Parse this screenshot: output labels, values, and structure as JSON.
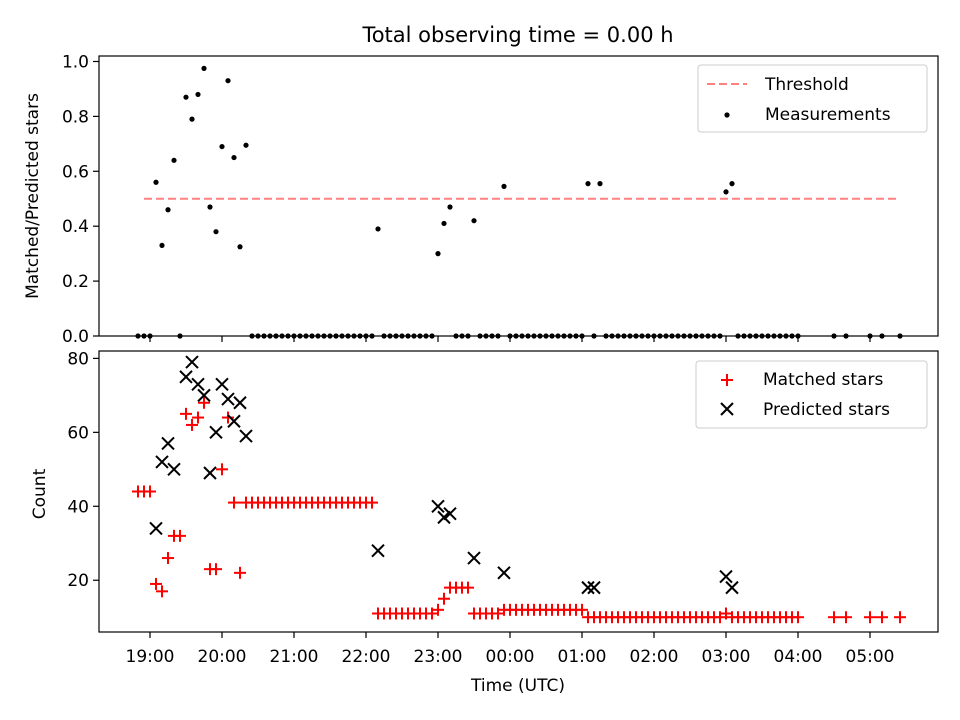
{
  "figure_title": "Total observing time = 0.00 h",
  "chart_data": [
    {
      "type": "scatter",
      "ylabel": "Matched/Predicted stars",
      "ylim": [
        0,
        1.02
      ],
      "yticks": [
        "0.0",
        "0.2",
        "0.4",
        "0.6",
        "0.8",
        "1.0"
      ],
      "legend": {
        "placement": "top-right",
        "entries": [
          "Threshold",
          "Measurements"
        ]
      },
      "threshold": {
        "name": "Threshold",
        "value": 0.5,
        "x_start": "18:55",
        "x_end": "05:25",
        "color": "#ff8080",
        "style": "dashed"
      },
      "series": [
        {
          "name": "Measurements",
          "color": "#000000",
          "x": [
            "18:50",
            "18:55",
            "19:00",
            "19:05",
            "19:10",
            "19:15",
            "19:20",
            "19:25",
            "19:30",
            "19:35",
            "19:40",
            "19:45",
            "19:50",
            "19:55",
            "20:00",
            "20:05",
            "20:10",
            "20:15",
            "20:20",
            "20:25",
            "20:30",
            "20:35",
            "20:40",
            "20:45",
            "20:50",
            "20:55",
            "21:00",
            "21:05",
            "21:10",
            "21:15",
            "21:20",
            "21:25",
            "21:30",
            "21:35",
            "21:40",
            "21:45",
            "21:50",
            "21:55",
            "22:00",
            "22:05",
            "22:10",
            "22:15",
            "22:20",
            "22:25",
            "22:30",
            "22:35",
            "22:40",
            "22:45",
            "22:50",
            "22:55",
            "23:00",
            "23:05",
            "23:10",
            "23:15",
            "23:20",
            "23:25",
            "23:30",
            "23:35",
            "23:40",
            "23:45",
            "23:50",
            "23:55",
            "00:00",
            "00:05",
            "00:10",
            "00:15",
            "00:20",
            "00:25",
            "00:30",
            "00:35",
            "00:40",
            "00:45",
            "00:50",
            "00:55",
            "01:00",
            "01:05",
            "01:10",
            "01:15",
            "01:20",
            "01:25",
            "01:30",
            "01:35",
            "01:40",
            "01:45",
            "01:50",
            "01:55",
            "02:00",
            "02:05",
            "02:10",
            "02:15",
            "02:20",
            "02:25",
            "02:30",
            "02:35",
            "02:40",
            "02:45",
            "02:50",
            "02:55",
            "03:00",
            "03:05",
            "03:10",
            "03:15",
            "03:20",
            "03:25",
            "03:30",
            "03:35",
            "03:40",
            "03:45",
            "03:50",
            "03:55",
            "04:00",
            "04:30",
            "04:40",
            "05:00",
            "05:10",
            "05:25"
          ],
          "y": [
            0,
            0,
            0,
            0.56,
            0.33,
            0.46,
            0.64,
            0,
            0.87,
            0.79,
            0.88,
            0.975,
            0.47,
            0.38,
            0.69,
            0.93,
            0.65,
            0.325,
            0.695,
            0,
            0,
            0,
            0,
            0,
            0,
            0,
            0,
            0,
            0,
            0,
            0,
            0,
            0,
            0,
            0,
            0,
            0,
            0,
            0,
            0,
            0.39,
            0,
            0,
            0,
            0,
            0,
            0,
            0,
            0,
            0,
            0.3,
            0.41,
            0.47,
            0,
            0,
            0,
            0.42,
            0,
            0,
            0,
            0,
            0.545,
            0,
            0,
            0,
            0,
            0,
            0,
            0,
            0,
            0,
            0,
            0,
            0,
            0,
            0.555,
            0,
            0.555,
            0,
            0,
            0,
            0,
            0,
            0,
            0,
            0,
            0,
            0,
            0,
            0,
            0,
            0,
            0,
            0,
            0,
            0,
            0,
            0,
            0.525,
            0.555,
            0,
            0,
            0,
            0,
            0,
            0,
            0,
            0,
            0,
            0,
            0,
            0,
            0,
            0,
            0,
            0
          ]
        }
      ]
    },
    {
      "type": "scatter",
      "ylabel": "Count",
      "xlabel": "Time (UTC)",
      "ylim": [
        6,
        82
      ],
      "yticks": [
        "20",
        "40",
        "60",
        "80"
      ],
      "xticks": [
        "19:00",
        "20:00",
        "21:00",
        "22:00",
        "23:00",
        "00:00",
        "01:00",
        "02:00",
        "03:00",
        "04:00",
        "05:00"
      ],
      "legend": {
        "placement": "top-right",
        "entries": [
          "Matched stars",
          "Predicted stars"
        ]
      },
      "series": [
        {
          "name": "Matched stars",
          "color": "#ff0000",
          "marker": "plus",
          "x": [
            "18:50",
            "18:55",
            "19:00",
            "19:05",
            "19:10",
            "19:15",
            "19:20",
            "19:25",
            "19:30",
            "19:35",
            "19:40",
            "19:45",
            "19:50",
            "19:55",
            "20:00",
            "20:05",
            "20:10",
            "20:15",
            "20:20",
            "20:25",
            "20:30",
            "20:35",
            "20:40",
            "20:45",
            "20:50",
            "20:55",
            "21:00",
            "21:05",
            "21:10",
            "21:15",
            "21:20",
            "21:25",
            "21:30",
            "21:35",
            "21:40",
            "21:45",
            "21:50",
            "21:55",
            "22:00",
            "22:05",
            "22:10",
            "22:15",
            "22:20",
            "22:25",
            "22:30",
            "22:35",
            "22:40",
            "22:45",
            "22:50",
            "22:55",
            "23:00",
            "23:05",
            "23:10",
            "23:15",
            "23:20",
            "23:25",
            "23:30",
            "23:35",
            "23:40",
            "23:45",
            "23:50",
            "23:55",
            "00:00",
            "00:05",
            "00:10",
            "00:15",
            "00:20",
            "00:25",
            "00:30",
            "00:35",
            "00:40",
            "00:45",
            "00:50",
            "00:55",
            "01:00",
            "01:05",
            "01:10",
            "01:15",
            "01:20",
            "01:25",
            "01:30",
            "01:35",
            "01:40",
            "01:45",
            "01:50",
            "01:55",
            "02:00",
            "02:05",
            "02:10",
            "02:15",
            "02:20",
            "02:25",
            "02:30",
            "02:35",
            "02:40",
            "02:45",
            "02:50",
            "02:55",
            "03:00",
            "03:05",
            "03:10",
            "03:15",
            "03:20",
            "03:25",
            "03:30",
            "03:35",
            "03:40",
            "03:45",
            "03:50",
            "03:55",
            "04:00",
            "04:30",
            "04:40",
            "05:00",
            "05:10",
            "05:25"
          ],
          "y": [
            44,
            44,
            44,
            19,
            17,
            26,
            32,
            32,
            65,
            62,
            64,
            68,
            23,
            23,
            50,
            64,
            41,
            22,
            41,
            41,
            41,
            41,
            41,
            41,
            41,
            41,
            41,
            41,
            41,
            41,
            41,
            41,
            41,
            41,
            41,
            41,
            41,
            41,
            41,
            41,
            11,
            11,
            11,
            11,
            11,
            11,
            11,
            11,
            11,
            11,
            12,
            15,
            18,
            18,
            18,
            18,
            11,
            11,
            11,
            11,
            11,
            12,
            12,
            12,
            12,
            12,
            12,
            12,
            12,
            12,
            12,
            12,
            12,
            12,
            12,
            10,
            10,
            10,
            10,
            10,
            10,
            10,
            10,
            10,
            10,
            10,
            10,
            10,
            10,
            10,
            10,
            10,
            10,
            10,
            10,
            10,
            10,
            10,
            11,
            10,
            10,
            10,
            10,
            10,
            10,
            10,
            10,
            10,
            10,
            10,
            10,
            10,
            10,
            10,
            10,
            10
          ]
        },
        {
          "name": "Predicted stars",
          "color": "#000000",
          "marker": "x",
          "x": [
            "19:05",
            "19:10",
            "19:15",
            "19:20",
            "19:30",
            "19:35",
            "19:40",
            "19:45",
            "19:50",
            "19:55",
            "20:00",
            "20:05",
            "20:10",
            "20:15",
            "20:20",
            "22:10",
            "23:00",
            "23:05",
            "23:10",
            "23:30",
            "23:55",
            "01:05",
            "01:10",
            "03:00",
            "03:05"
          ],
          "y": [
            34,
            52,
            57,
            50,
            75,
            79,
            73,
            70,
            49,
            60,
            73,
            69,
            63,
            68,
            59,
            28,
            40,
            37,
            38,
            26,
            22,
            18,
            18,
            21,
            18
          ]
        }
      ]
    }
  ]
}
